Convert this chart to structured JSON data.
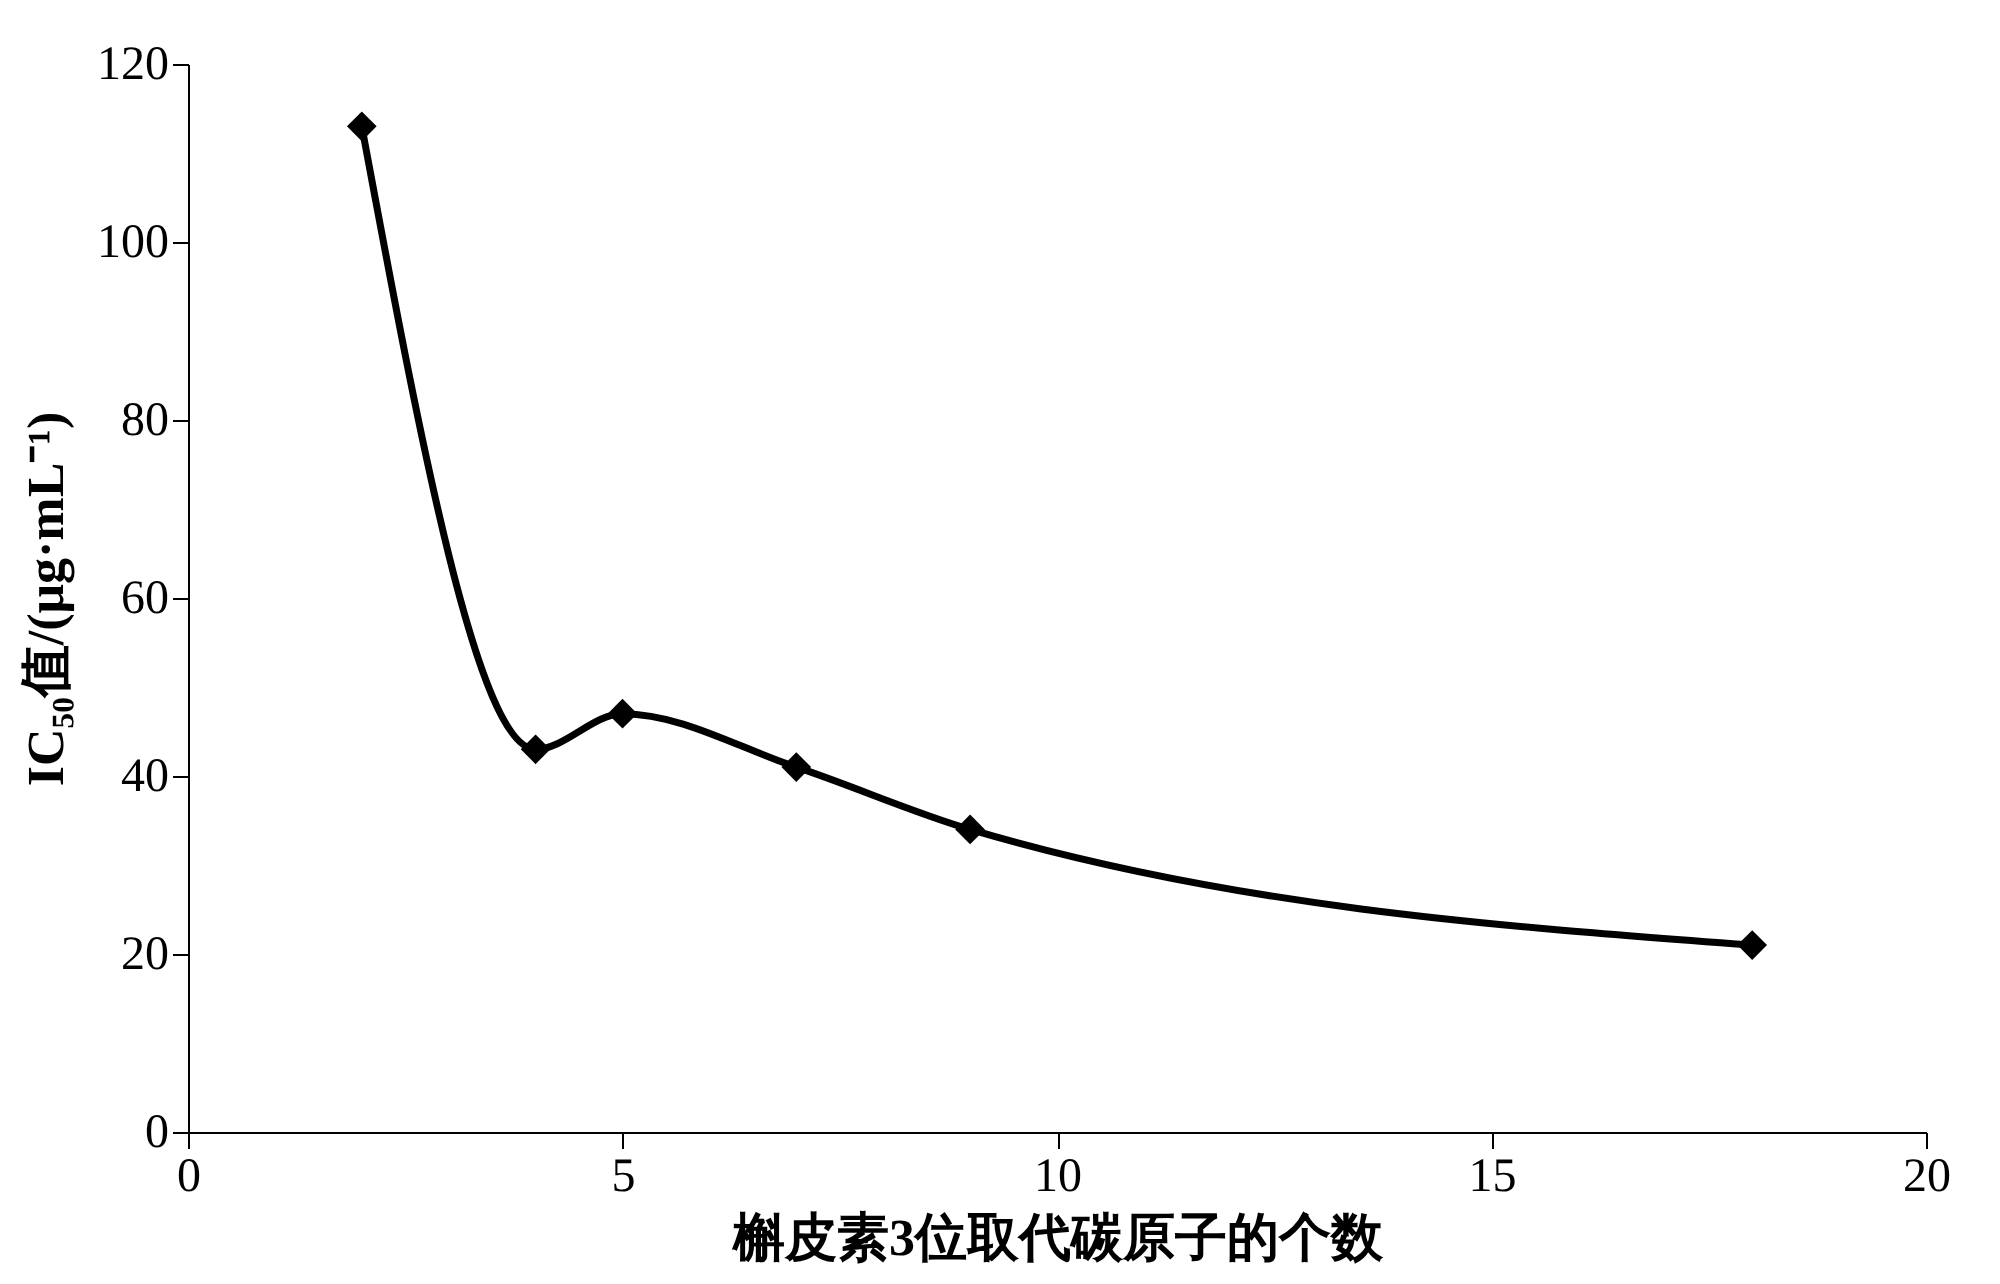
{
  "chart_data": {
    "type": "line",
    "xlabel": "槲皮素3位取代碳原子的个数",
    "ylabel": "IC₅₀值/(μg·mL⁻¹)",
    "x": [
      2,
      4,
      5,
      7,
      9,
      18
    ],
    "series": [
      {
        "color": "#000000",
        "values": [
          113,
          43,
          47,
          41,
          34,
          21
        ]
      }
    ],
    "xlim": [
      0,
      20
    ],
    "xticks": [
      0,
      5,
      10,
      15,
      20
    ],
    "ylim": [
      0,
      120
    ],
    "yticks": [
      0,
      20,
      40,
      60,
      80,
      100,
      120
    ],
    "grid": false,
    "legend": false,
    "marker": "diamond",
    "line_style": "solid"
  }
}
